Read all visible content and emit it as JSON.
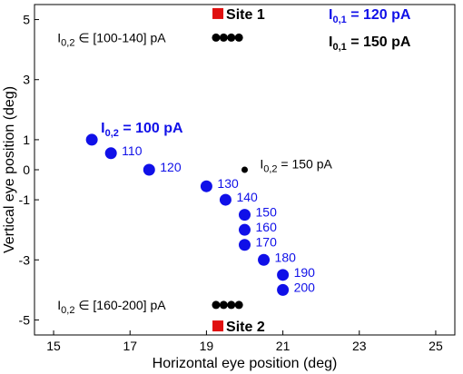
{
  "chart_data": {
    "type": "scatter",
    "xlabel": "Horizontal eye position (deg)",
    "ylabel": "Vertical eye position (deg)",
    "xlim": [
      14.5,
      25.5
    ],
    "ylim": [
      -5.5,
      5.5
    ],
    "xticks": [
      15,
      17,
      19,
      21,
      23,
      25
    ],
    "yticks": [
      5,
      3,
      1,
      0,
      -1,
      -3,
      -5
    ],
    "yticklabels": [
      "5",
      "3",
      "1",
      "0",
      "-1",
      "-3",
      "-5"
    ],
    "colors": {
      "blue": "#1010e8",
      "black": "#000000",
      "red": "#e01010"
    },
    "legend": [
      {
        "text": "I",
        "sub": "0,1",
        "rest": " = 120 pA",
        "color": "#1010e8"
      },
      {
        "text": "I",
        "sub": "0,1",
        "rest": " = 150 pA",
        "color": "#000000"
      }
    ],
    "blue_series": {
      "title": {
        "text": "I",
        "sub": "0,2",
        "rest": " = 100 pA"
      },
      "points": [
        {
          "x": 16.0,
          "y": 1.0,
          "label": ""
        },
        {
          "x": 16.5,
          "y": 0.55,
          "label": "110"
        },
        {
          "x": 17.5,
          "y": 0.0,
          "label": "120"
        },
        {
          "x": 19.0,
          "y": -0.55,
          "label": "130"
        },
        {
          "x": 19.5,
          "y": -1.0,
          "label": "140"
        },
        {
          "x": 20.0,
          "y": -1.5,
          "label": "150"
        },
        {
          "x": 20.0,
          "y": -2.0,
          "label": "160"
        },
        {
          "x": 20.0,
          "y": -2.5,
          "label": "170"
        },
        {
          "x": 20.5,
          "y": -3.0,
          "label": "180"
        },
        {
          "x": 21.0,
          "y": -3.5,
          "label": "190"
        },
        {
          "x": 21.0,
          "y": -4.0,
          "label": "200"
        }
      ]
    },
    "black_points": [
      {
        "x": 19.25,
        "y": 4.4
      },
      {
        "x": 19.45,
        "y": 4.4
      },
      {
        "x": 19.65,
        "y": 4.4
      },
      {
        "x": 19.85,
        "y": 4.4
      },
      {
        "x": 20.0,
        "y": 0.0
      },
      {
        "x": 19.25,
        "y": -4.5
      },
      {
        "x": 19.45,
        "y": -4.5
      },
      {
        "x": 19.65,
        "y": -4.5
      },
      {
        "x": 19.85,
        "y": -4.5
      }
    ],
    "sites": [
      {
        "x": 19.3,
        "y": 5.2,
        "label": "Site 1"
      },
      {
        "x": 19.3,
        "y": -5.2,
        "label": "Site 2"
      }
    ],
    "annotations": [
      {
        "x": 20.4,
        "y": 0.2,
        "text": "I",
        "sub": "0,2",
        "rest": " = 150 pA"
      },
      {
        "x": 15.1,
        "y": 4.4,
        "text": "I",
        "sub": "0,2",
        "rest": " ∈ [100-140] pA"
      },
      {
        "x": 15.1,
        "y": -4.5,
        "text": "I",
        "sub": "0,2",
        "rest": " ∈ [160-200] pA"
      }
    ]
  }
}
